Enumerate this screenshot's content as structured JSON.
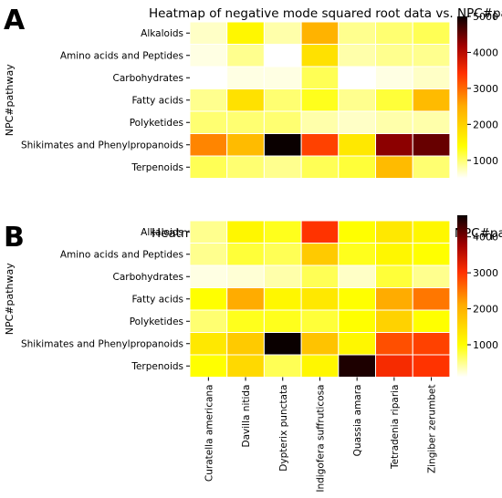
{
  "chart_data": [
    {
      "panel_label": "A",
      "type": "heatmap",
      "title": "Heatmap of negative mode squared root data vs. NPC#pathway",
      "ylabel": "NPC#pathway",
      "xlabel": "",
      "rows": [
        "Alkaloids",
        "Amino acids and Peptides",
        "Carbohydrates",
        "Fatty acids",
        "Polyketides",
        "Shikimates and Phenylpropanoids",
        "Terpenoids"
      ],
      "columns": [
        "Curatella americana",
        "Davilla nitida",
        "Dypterix punctata",
        "Indigofera suffruticosa",
        "Quassia amara",
        "Tetradenia riparia",
        "Zingiber zerumbet"
      ],
      "values": [
        [
          700,
          1500,
          800,
          2400,
          900,
          1000,
          1100
        ],
        [
          600,
          900,
          400,
          1800,
          800,
          900,
          900
        ],
        [
          300,
          600,
          600,
          1100,
          500,
          600,
          700
        ],
        [
          900,
          1800,
          1000,
          1300,
          900,
          1200,
          2300
        ],
        [
          1000,
          1000,
          1000,
          800,
          700,
          800,
          800
        ],
        [
          2800,
          2300,
          5000,
          3300,
          1700,
          4300,
          4500
        ],
        [
          1100,
          1000,
          900,
          1100,
          1200,
          2300,
          1000
        ]
      ],
      "colorbar": {
        "min": 500,
        "max": 5000,
        "ticks": [
          1000,
          2000,
          3000,
          4000,
          5000
        ]
      },
      "colormap": "hot_r"
    },
    {
      "panel_label": "B",
      "type": "heatmap",
      "title": "Heatmap of positive mode squared root data vs. NPC#pathway",
      "ylabel": "NPC#pathway",
      "xlabel": "",
      "rows": [
        "Alkaloids",
        "Amino acids and Peptides",
        "Carbohydrates",
        "Fatty acids",
        "Polyketides",
        "Shikimates and Phenylpropanoids",
        "Terpenoids"
      ],
      "columns": [
        "Curatella americana",
        "Davilla nitida",
        "Dypterix punctata",
        "Indigofera suffruticosa",
        "Quassia amara",
        "Tetradenia riparia",
        "Zingiber zerumbet"
      ],
      "values": [
        [
          500,
          1100,
          900,
          3000,
          1000,
          1300,
          1100
        ],
        [
          500,
          800,
          700,
          1700,
          900,
          1100,
          1000
        ],
        [
          200,
          250,
          400,
          700,
          300,
          800,
          500
        ],
        [
          1000,
          2100,
          1100,
          1300,
          1000,
          2100,
          2500
        ],
        [
          600,
          900,
          900,
          800,
          1000,
          1600,
          1000
        ],
        [
          1300,
          1700,
          4600,
          1800,
          1100,
          2800,
          2900
        ],
        [
          1000,
          1500,
          700,
          1100,
          4500,
          3100,
          3000
        ]
      ],
      "colorbar": {
        "min": 100,
        "max": 4600,
        "ticks": [
          1000,
          2000,
          3000,
          4000
        ]
      },
      "colormap": "hot_r"
    }
  ]
}
